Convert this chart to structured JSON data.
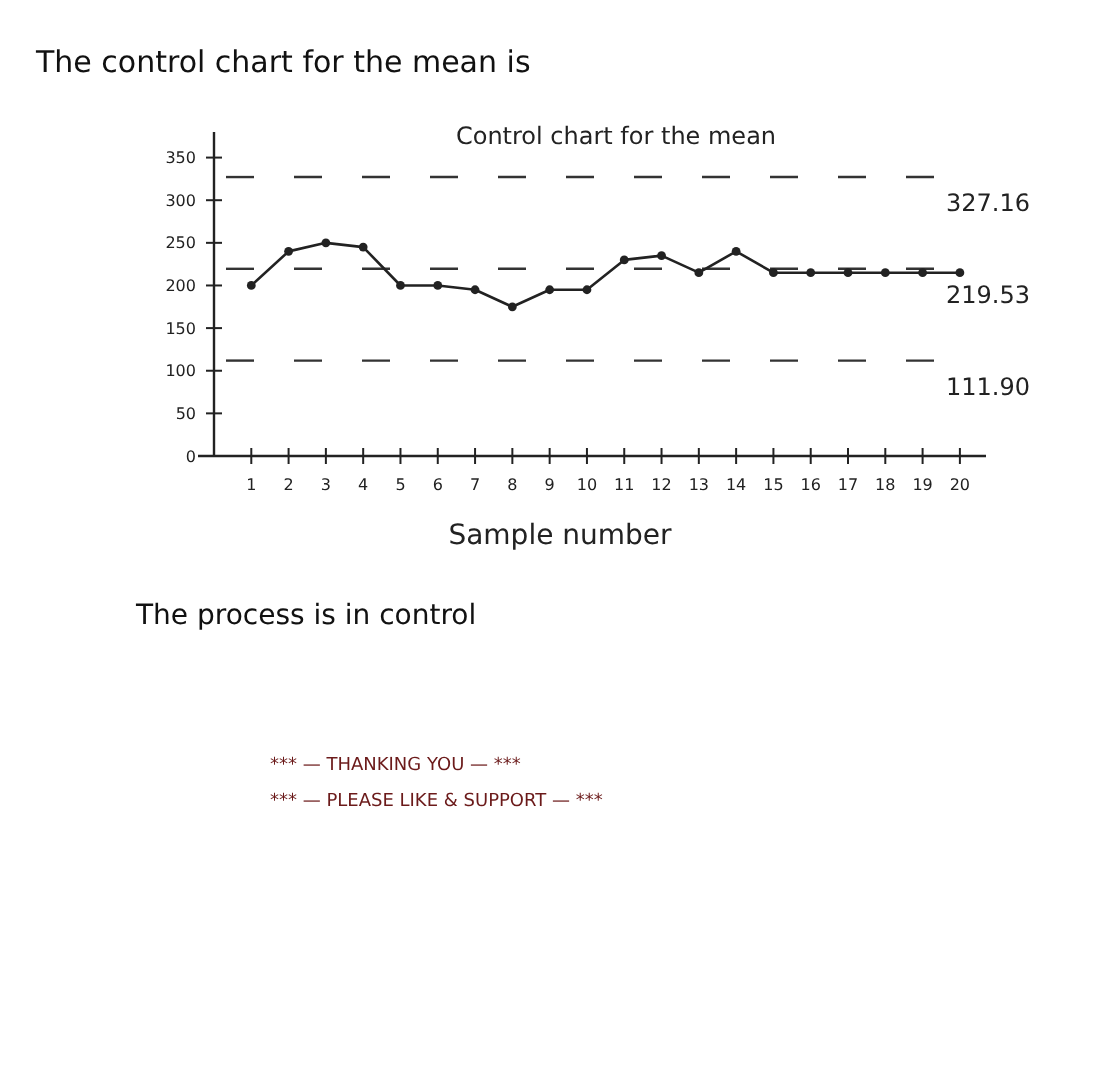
{
  "chart_data": {
    "type": "line",
    "title": "Control chart for the mean",
    "xlabel": "Sample number",
    "x": [
      1,
      2,
      3,
      4,
      5,
      6,
      7,
      8,
      9,
      10,
      11,
      12,
      13,
      14,
      15,
      16,
      17,
      18,
      19,
      20
    ],
    "series": [
      {
        "color": "#222222",
        "values": [
          200,
          240,
          250,
          245,
          200,
          200,
          195,
          175,
          195,
          195,
          230,
          235,
          215,
          240,
          215,
          215,
          215,
          215,
          215,
          215
        ]
      }
    ],
    "xlim": [
      0,
      20.7
    ],
    "xticks": [
      1,
      2,
      3,
      4,
      5,
      6,
      7,
      8,
      9,
      10,
      11,
      12,
      13,
      14,
      15,
      16,
      17,
      18,
      19,
      20
    ],
    "ylim": [
      0,
      380
    ],
    "yticks": [
      0,
      50,
      100,
      150,
      200,
      250,
      300,
      350
    ],
    "marker": "circle",
    "line_style": "solid",
    "ref_lines": [
      {
        "axis": "y",
        "value": 327.16,
        "label": "327.16",
        "color": "#333333",
        "line_style": "dashed"
      },
      {
        "axis": "y",
        "value": 219.53,
        "label": "219.53",
        "color": "#333333",
        "line_style": "dashed"
      },
      {
        "axis": "y",
        "value": 111.9,
        "label": "111.90",
        "color": "#333333",
        "line_style": "dashed"
      }
    ],
    "annotations": [
      "The control chart for the mean is",
      "The process is in control",
      "*** — THANKING YOU — ***",
      "*** — PLEASE LIKE & SUPPORT — ***"
    ]
  }
}
